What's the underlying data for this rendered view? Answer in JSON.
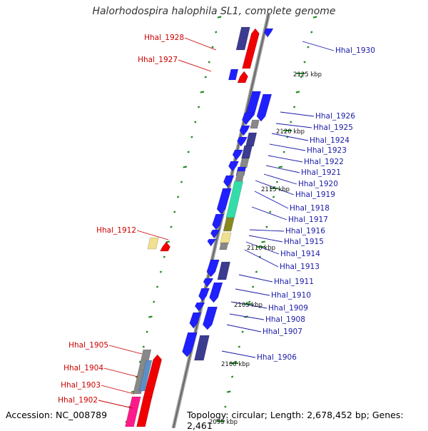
{
  "title": "Halorhodospira halophila SL1, complete genome",
  "footer": {
    "accession": "Accession: NC_008789",
    "summary": "Topology: circular; Length: 2,678,452 bp; Genes: 2,461"
  },
  "colors": {
    "forward_label": "#1a1aa8",
    "reverse_label": "#cc0000",
    "blue": "#1f1fff",
    "navy": "#3b3b8f",
    "red": "#f00000",
    "gray": "#888888",
    "teal": "#33ddaa",
    "olive": "#888822",
    "yellow": "#f0e090",
    "pink": "#ff1a8c",
    "steel": "#5b8fc7",
    "backbone": "#888888",
    "tick": "#228822"
  },
  "scale_labels": [
    "2125 kbp",
    "2120 kbp",
    "2115 kbp",
    "2110 kbp",
    "2105 kbp",
    "2100 kbp",
    "2095 kbp"
  ],
  "gene_labels_forward": [
    "Hhal_1930",
    "Hhal_1926",
    "Hhal_1925",
    "Hhal_1924",
    "Hhal_1923",
    "Hhal_1922",
    "Hhal_1921",
    "Hhal_1920",
    "Hhal_1919",
    "Hhal_1918",
    "Hhal_1917",
    "Hhal_1916",
    "Hhal_1915",
    "Hhal_1914",
    "Hhal_1913",
    "Hhal_1911",
    "Hhal_1910",
    "Hhal_1909",
    "Hhal_1908",
    "Hhal_1907",
    "Hhal_1906"
  ],
  "gene_labels_reverse": [
    "Hhal_1928",
    "Hhal_1927",
    "Hhal_1912",
    "Hhal_1905",
    "Hhal_1904",
    "Hhal_1903",
    "Hhal_1902"
  ]
}
